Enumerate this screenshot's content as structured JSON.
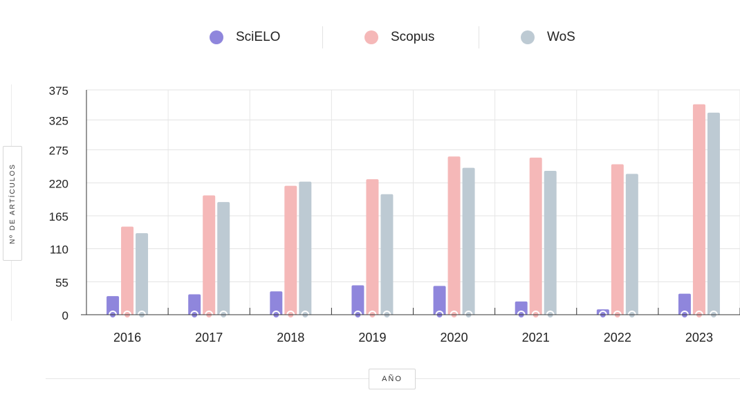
{
  "chart_data": {
    "type": "bar",
    "categories": [
      "2016",
      "2017",
      "2018",
      "2019",
      "2020",
      "2021",
      "2022",
      "2023"
    ],
    "series": [
      {
        "name": "SciELO",
        "color": "#8f86dc",
        "values": [
          31,
          34,
          39,
          49,
          48,
          22,
          9,
          35
        ]
      },
      {
        "name": "Scopus",
        "color": "#f5b8b8",
        "values": [
          147,
          199,
          215,
          226,
          264,
          262,
          251,
          351
        ]
      },
      {
        "name": "WoS",
        "color": "#bdcad3",
        "values": [
          136,
          188,
          222,
          201,
          245,
          240,
          235,
          337
        ]
      }
    ],
    "yticks": [
      0,
      55,
      110,
      165,
      220,
      275,
      325,
      375
    ],
    "ylim": [
      0,
      375
    ],
    "ylabel": "Nº DE ARTÍCULOS",
    "xlabel": "AÑO",
    "legend_position": "top-center",
    "grid": true
  }
}
